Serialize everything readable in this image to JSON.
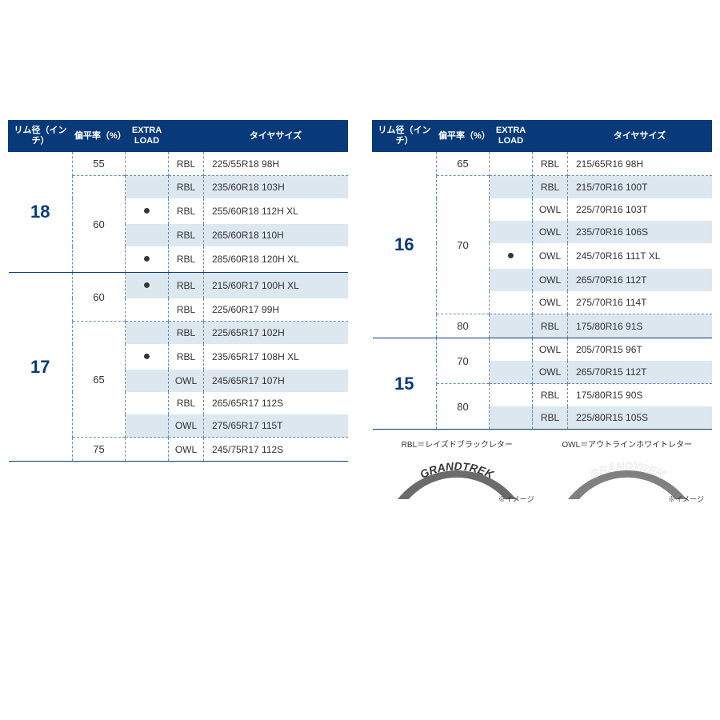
{
  "colors": {
    "header_bg": "#083a7a",
    "header_text": "#ffffff",
    "stripe_bg": "#dce7f0",
    "rim_text": "#083a7a",
    "body_text": "#333333",
    "dash_border": "#6a8db8",
    "arch_rbl_fill": "#6b6b6b",
    "arch_owl_fill": "#808080"
  },
  "headers": {
    "rim": "リム径（インチ）",
    "aspect": "偏平率（%）",
    "extra_load": "EXTRA LOAD",
    "code_blank": "",
    "size": "タイヤサイズ"
  },
  "column_widths": {
    "rim": 80,
    "aspect": 66,
    "extra_load": 54,
    "code": 44
  },
  "font_sizes": {
    "header": 11,
    "rim": 22,
    "aspect": 13,
    "cell": 12,
    "legend": 10,
    "note": 9
  },
  "left_table": [
    {
      "rim": "18",
      "rim_span": 5,
      "groups": [
        {
          "aspect": "55",
          "aspect_span": 1,
          "rows": [
            {
              "xl": "",
              "code": "RBL",
              "size": "225/55R18 98H",
              "stripe": false
            }
          ]
        },
        {
          "aspect": "60",
          "aspect_span": 4,
          "rows": [
            {
              "xl": "",
              "code": "RBL",
              "size": "235/60R18 103H",
              "stripe": true
            },
            {
              "xl": "●",
              "code": "RBL",
              "size": "255/60R18 112H XL",
              "stripe": false
            },
            {
              "xl": "",
              "code": "RBL",
              "size": "265/60R18 110H",
              "stripe": true
            },
            {
              "xl": "●",
              "code": "RBL",
              "size": "285/60R18 120H XL",
              "stripe": false
            }
          ]
        }
      ]
    },
    {
      "rim": "17",
      "rim_span": 8,
      "groups": [
        {
          "aspect": "60",
          "aspect_span": 2,
          "rows": [
            {
              "xl": "●",
              "code": "RBL",
              "size": "215/60R17 100H XL",
              "stripe": true
            },
            {
              "xl": "",
              "code": "RBL",
              "size": "225/60R17 99H",
              "stripe": false
            }
          ]
        },
        {
          "aspect": "65",
          "aspect_span": 5,
          "rows": [
            {
              "xl": "",
              "code": "RBL",
              "size": "225/65R17 102H",
              "stripe": true
            },
            {
              "xl": "●",
              "code": "RBL",
              "size": "235/65R17 108H XL",
              "stripe": false
            },
            {
              "xl": "",
              "code": "OWL",
              "size": "245/65R17 107H",
              "stripe": true
            },
            {
              "xl": "",
              "code": "RBL",
              "size": "265/65R17 112S",
              "stripe": false
            },
            {
              "xl": "",
              "code": "OWL",
              "size": "275/65R17 115T",
              "stripe": true
            }
          ]
        },
        {
          "aspect": "75",
          "aspect_span": 1,
          "rows": [
            {
              "xl": "",
              "code": "OWL",
              "size": "245/75R17 112S",
              "stripe": false
            }
          ]
        }
      ]
    }
  ],
  "right_table": [
    {
      "rim": "16",
      "rim_span": 8,
      "groups": [
        {
          "aspect": "65",
          "aspect_span": 1,
          "rows": [
            {
              "xl": "",
              "code": "RBL",
              "size": "215/65R16 98H",
              "stripe": false
            }
          ]
        },
        {
          "aspect": "70",
          "aspect_span": 6,
          "rows": [
            {
              "xl": "",
              "code": "RBL",
              "size": "215/70R16 100T",
              "stripe": true
            },
            {
              "xl": "",
              "code": "OWL",
              "size": "225/70R16 103T",
              "stripe": false
            },
            {
              "xl": "",
              "code": "OWL",
              "size": "235/70R16 106S",
              "stripe": true
            },
            {
              "xl": "●",
              "code": "OWL",
              "size": "245/70R16 111T XL",
              "stripe": false
            },
            {
              "xl": "",
              "code": "OWL",
              "size": "265/70R16 112T",
              "stripe": true
            },
            {
              "xl": "",
              "code": "OWL",
              "size": "275/70R16 114T",
              "stripe": false
            }
          ]
        },
        {
          "aspect": "80",
          "aspect_span": 1,
          "rows": [
            {
              "xl": "",
              "code": "RBL",
              "size": "175/80R16 91S",
              "stripe": true
            }
          ]
        }
      ]
    },
    {
      "rim": "15",
      "rim_span": 4,
      "groups": [
        {
          "aspect": "70",
          "aspect_span": 2,
          "rows": [
            {
              "xl": "",
              "code": "OWL",
              "size": "205/70R15 96T",
              "stripe": false
            },
            {
              "xl": "",
              "code": "OWL",
              "size": "265/70R15 112T",
              "stripe": true
            }
          ]
        },
        {
          "aspect": "80",
          "aspect_span": 2,
          "rows": [
            {
              "xl": "",
              "code": "RBL",
              "size": "175/80R15 90S",
              "stripe": false
            },
            {
              "xl": "",
              "code": "RBL",
              "size": "225/80R15 105S",
              "stripe": true
            }
          ]
        }
      ]
    }
  ],
  "legend": {
    "rbl": {
      "label": "RBL＝レイズドブラックレター",
      "brand": "GRANDTREK",
      "note": "※イメージ"
    },
    "owl": {
      "label": "OWL＝アウトラインホワイトレター",
      "brand": "GRANDTREK",
      "note": "※イメージ"
    }
  }
}
